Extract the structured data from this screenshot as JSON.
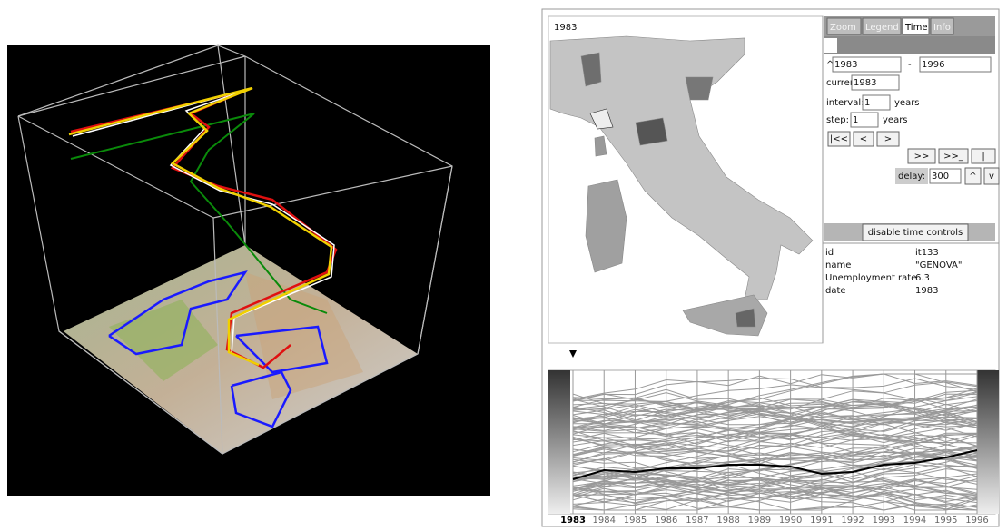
{
  "map_label": "1983",
  "tabs": [
    "Zoom",
    "Legend",
    "Time",
    "Info"
  ],
  "time_controls": {
    "range_marker": "^",
    "from": "1983",
    "dash": "-",
    "to": "1996",
    "current_label": "current:",
    "current": "1983",
    "interval_label": "interval:",
    "interval": "1",
    "interval_unit": "years",
    "step_label": "step:",
    "step": "1",
    "step_unit": "years",
    "buttons": [
      "|<<",
      "<",
      ">",
      ">>",
      ">>_",
      "|"
    ],
    "delay_label": "delay:",
    "delay": "300",
    "up": "^",
    "down": "v",
    "disable": "disable time controls"
  },
  "info": [
    [
      "id",
      "it133"
    ],
    [
      "name",
      "\"GENOVA\""
    ],
    [
      "Unemployment rate",
      "6.3"
    ],
    [
      "date",
      "1983"
    ]
  ],
  "years": [
    "1983",
    "1984",
    "1985",
    "1986",
    "1987",
    "1988",
    "1989",
    "1990",
    "1991",
    "1992",
    "1993",
    "1994",
    "1995",
    "1996"
  ]
}
